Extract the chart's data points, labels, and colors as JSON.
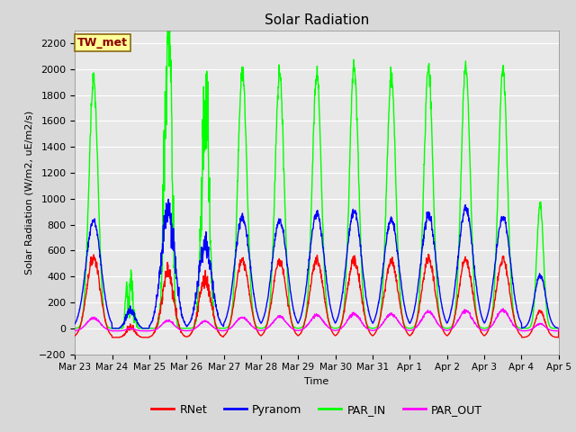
{
  "title": "Solar Radiation",
  "ylabel": "Solar Radiation (W/m2, uE/m2/s)",
  "xlabel": "Time",
  "ylim": [
    -200,
    2300
  ],
  "yticks": [
    -200,
    0,
    200,
    400,
    600,
    800,
    1000,
    1200,
    1400,
    1600,
    1800,
    2000,
    2200
  ],
  "fig_bg_color": "#d8d8d8",
  "plot_bg_color": "#e8e8e8",
  "grid_color": "white",
  "legend_labels": [
    "RNet",
    "Pyranom",
    "PAR_IN",
    "PAR_OUT"
  ],
  "legend_colors": [
    "red",
    "blue",
    "lime",
    "magenta"
  ],
  "station_label": "TW_met",
  "station_label_color": "#8B0000",
  "station_box_facecolor": "#FFFF99",
  "station_box_edgecolor": "#8B6914",
  "n_days": 13,
  "ppd": 144,
  "x_tick_labels": [
    "Mar 23",
    "Mar 24",
    "Mar 25",
    "Mar 26",
    "Mar 27",
    "Mar 28",
    "Mar 29",
    "Mar 30",
    "Mar 31",
    "Apr 1",
    "Apr 2",
    "Apr 3",
    "Apr 4",
    "Apr 5"
  ],
  "series_linewidth": 1.0,
  "RNet_color": "red",
  "Pyranom_color": "blue",
  "PAR_IN_color": "#00ff00",
  "PAR_OUT_color": "magenta"
}
